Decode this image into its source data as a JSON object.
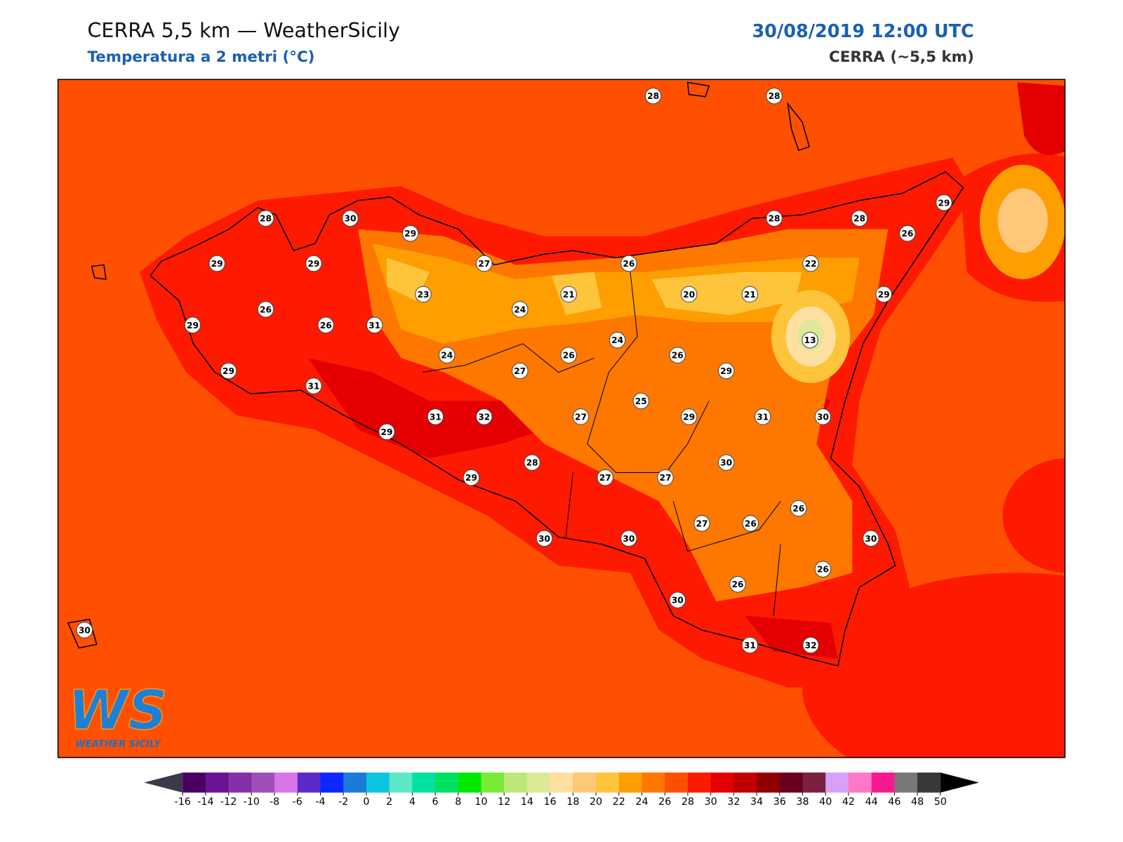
{
  "header": {
    "title": "CERRA 5,5 km — WeatherSicily",
    "subtitle": "Temperatura a 2 metri (°C)",
    "datetime": "30/08/2019 12:00 UTC",
    "model": "CERRA (~5,5 km)"
  },
  "stations": [
    28,
    28,
    28,
    30,
    29,
    29,
    29,
    27,
    26,
    28,
    28,
    29,
    26,
    22,
    29,
    23,
    21,
    20,
    21,
    26,
    29,
    26,
    31,
    24,
    24,
    24,
    26,
    26,
    13,
    29,
    29,
    27,
    31,
    25,
    31,
    32,
    27,
    29,
    31,
    30,
    29,
    30,
    28,
    29,
    27,
    27,
    27,
    26,
    26,
    30,
    30,
    30,
    26,
    26,
    30,
    31,
    32,
    30
  ],
  "colorbar": {
    "ticks": [
      -16,
      -14,
      -12,
      -10,
      -8,
      -6,
      -4,
      -2,
      0,
      2,
      4,
      6,
      8,
      10,
      12,
      14,
      16,
      18,
      20,
      22,
      24,
      26,
      28,
      30,
      32,
      34,
      36,
      38,
      40,
      42,
      44,
      46,
      48,
      50
    ],
    "colors": [
      "#4a0060",
      "#6a1495",
      "#8530a8",
      "#9e50b8",
      "#d975e8",
      "#5a2bc8",
      "#0a28ff",
      "#1a7bd8",
      "#0bc4e0",
      "#5ae8c8",
      "#00e0a0",
      "#00e060",
      "#00e800",
      "#78ea3a",
      "#bde878",
      "#dde898",
      "#ffe0a0",
      "#fdc878",
      "#fec43c",
      "#fe9e00",
      "#fe7800",
      "#fe5000",
      "#fe1a00",
      "#e40000",
      "#c00000",
      "#900000",
      "#6a0020",
      "#7a2040",
      "#d8a0f8",
      "#ff78c8",
      "#f81890",
      "#787878",
      "#383838"
    ]
  },
  "logo": {
    "mark": "WS",
    "text": "WEATHER SICILY"
  }
}
